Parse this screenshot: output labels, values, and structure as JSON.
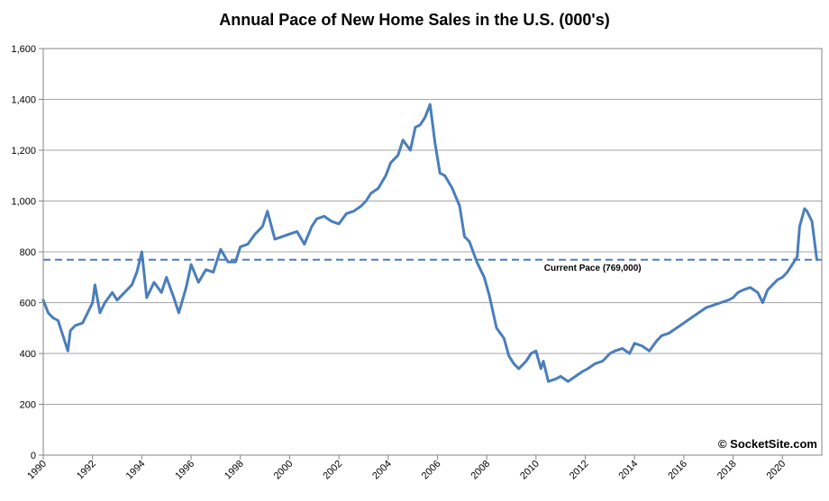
{
  "chart_data": {
    "type": "line",
    "title": "Annual Pace of New Home Sales in the U.S. (000's)",
    "xlabel": "",
    "ylabel": "",
    "xlim": [
      1990,
      2021.6
    ],
    "ylim": [
      0,
      1600
    ],
    "y_ticks": [
      0,
      200,
      400,
      600,
      800,
      1000,
      1200,
      1400,
      1600
    ],
    "y_tick_labels": [
      "0",
      "200",
      "400",
      "600",
      "800",
      "1,000",
      "1,200",
      "1,400",
      "1,600"
    ],
    "x_ticks": [
      1990,
      1992,
      1994,
      1996,
      1998,
      2000,
      2002,
      2004,
      2006,
      2008,
      2010,
      2012,
      2014,
      2016,
      2018,
      2020
    ],
    "x_tick_labels": [
      "1990",
      "1992",
      "1994",
      "1996",
      "1998",
      "2000",
      "2002",
      "2004",
      "2006",
      "2008",
      "2010",
      "2012",
      "2014",
      "2016",
      "2018",
      "2020"
    ],
    "grid": "horizontal",
    "legend": "none",
    "series": [
      {
        "color": "#4a7ebb",
        "x": [
          1990.0,
          1990.2,
          1990.4,
          1990.6,
          1990.8,
          1991.0,
          1991.1,
          1991.3,
          1991.6,
          1991.8,
          1992.0,
          1992.1,
          1992.3,
          1992.5,
          1992.8,
          1993.0,
          1993.3,
          1993.6,
          1993.8,
          1994.0,
          1994.2,
          1994.5,
          1994.8,
          1995.0,
          1995.3,
          1995.5,
          1995.8,
          1996.0,
          1996.3,
          1996.6,
          1996.9,
          1997.2,
          1997.5,
          1997.8,
          1998.0,
          1998.3,
          1998.6,
          1998.9,
          1999.1,
          1999.4,
          1999.7,
          2000.0,
          2000.3,
          2000.6,
          2000.9,
          2001.1,
          2001.4,
          2001.7,
          2002.0,
          2002.3,
          2002.6,
          2002.9,
          2003.1,
          2003.3,
          2003.6,
          2003.9,
          2004.1,
          2004.4,
          2004.6,
          2004.9,
          2005.1,
          2005.3,
          2005.5,
          2005.7,
          2005.9,
          2006.1,
          2006.3,
          2006.6,
          2006.9,
          2007.1,
          2007.3,
          2007.6,
          2007.9,
          2008.1,
          2008.4,
          2008.7,
          2008.9,
          2009.1,
          2009.3,
          2009.6,
          2009.8,
          2010.0,
          2010.2,
          2010.3,
          2010.5,
          2010.8,
          2011.0,
          2011.3,
          2011.6,
          2011.9,
          2012.1,
          2012.4,
          2012.7,
          2013.0,
          2013.2,
          2013.5,
          2013.8,
          2014.0,
          2014.3,
          2014.6,
          2014.9,
          2015.1,
          2015.4,
          2015.7,
          2016.0,
          2016.3,
          2016.6,
          2016.9,
          2017.2,
          2017.5,
          2017.8,
          2018.0,
          2018.2,
          2018.4,
          2018.7,
          2019.0,
          2019.2,
          2019.4,
          2019.6,
          2019.8,
          2020.0,
          2020.2,
          2020.4,
          2020.6,
          2020.7,
          2020.9,
          2021.0,
          2021.1,
          2021.2,
          2021.4
        ],
        "y": [
          610,
          560,
          540,
          530,
          470,
          410,
          490,
          510,
          520,
          560,
          600,
          670,
          560,
          600,
          640,
          610,
          640,
          670,
          720,
          800,
          620,
          680,
          640,
          700,
          620,
          560,
          660,
          750,
          680,
          730,
          720,
          810,
          760,
          760,
          820,
          830,
          870,
          900,
          960,
          850,
          860,
          870,
          880,
          830,
          900,
          930,
          940,
          920,
          910,
          950,
          960,
          980,
          1000,
          1030,
          1050,
          1100,
          1150,
          1180,
          1240,
          1200,
          1290,
          1300,
          1330,
          1380,
          1230,
          1110,
          1100,
          1050,
          980,
          860,
          840,
          760,
          700,
          630,
          500,
          460,
          390,
          360,
          340,
          370,
          400,
          410,
          340,
          370,
          290,
          300,
          310,
          290,
          310,
          330,
          340,
          360,
          370,
          400,
          410,
          420,
          400,
          440,
          430,
          410,
          450,
          470,
          480,
          500,
          520,
          540,
          560,
          580,
          590,
          600,
          610,
          620,
          640,
          650,
          660,
          640,
          600,
          650,
          670,
          690,
          700,
          720,
          750,
          780,
          900,
          970,
          960,
          940,
          920,
          769
        ]
      }
    ],
    "reference_line": {
      "y": 769,
      "color": "#4a7ebb",
      "style": "dashed"
    },
    "annotations": [
      {
        "text": "Current Pace (769,000)",
        "x": 2012.3,
        "y": 740
      }
    ]
  },
  "watermark": "© SocketSite.com"
}
